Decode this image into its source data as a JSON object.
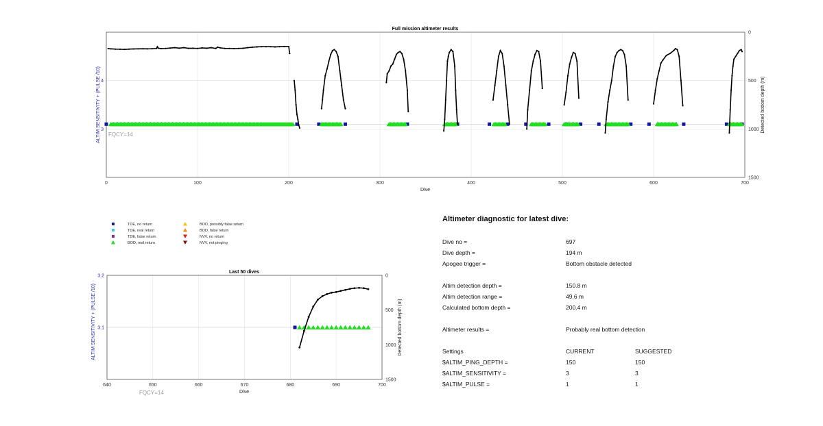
{
  "chart_data": [
    {
      "type": "line",
      "title": "Full mission altimeter results",
      "xlabel": "Dive",
      "ylabel_left": "ALTIM SENSITIVITY + (PULSE /10)",
      "ylabel_right": "Detected bottom depth (m)",
      "xlim": [
        0,
        700
      ],
      "ylim_left": [
        2,
        5
      ],
      "ylim_right": [
        1500,
        0
      ],
      "x_ticks": [
        "0",
        "100",
        "200",
        "300",
        "400",
        "500",
        "600",
        "700"
      ],
      "y_left_ticks": [
        "3",
        "4"
      ],
      "y_right_ticks": [
        "0",
        "500",
        "1000",
        "1500"
      ],
      "annotation": "FQCY=14",
      "settings_level": 3.1,
      "bottom_depth_segments": [
        {
          "x": [
            2,
            5,
            10,
            15,
            20,
            25,
            30,
            35,
            40,
            45,
            50,
            55,
            56,
            57,
            60,
            65,
            70,
            75,
            80,
            85,
            90,
            95,
            100,
            105,
            110,
            115,
            120,
            122,
            125,
            130,
            135,
            140,
            145,
            150,
            155,
            160,
            165,
            170,
            175,
            180,
            185,
            190,
            195,
            200,
            201
          ],
          "y": [
            170,
            172,
            175,
            176,
            178,
            175,
            173,
            172,
            171,
            172,
            171,
            168,
            150,
            165,
            170,
            168,
            164,
            160,
            165,
            160,
            167,
            166,
            168,
            162,
            166,
            160,
            168,
            155,
            162,
            168,
            168,
            170,
            168,
            166,
            160,
            155,
            152,
            150,
            150,
            150,
            152,
            150,
            148,
            148,
            220
          ]
        },
        {
          "x": [
            206,
            207,
            208,
            209,
            210,
            211,
            212
          ],
          "y": [
            500,
            600,
            750,
            850,
            900,
            960,
            990
          ]
        },
        {
          "x": [
            236,
            237,
            238,
            240,
            242,
            244,
            246,
            248,
            250,
            252,
            254,
            256,
            258,
            260,
            262
          ],
          "y": [
            790,
            700,
            600,
            450,
            380,
            300,
            230,
            190,
            180,
            200,
            250,
            400,
            550,
            700,
            790
          ]
        },
        {
          "x": [
            307,
            308,
            310,
            312,
            314,
            316,
            318,
            320,
            322,
            324,
            326,
            328,
            330,
            331
          ],
          "y": [
            520,
            430,
            400,
            350,
            330,
            280,
            230,
            210,
            200,
            220,
            280,
            400,
            600,
            820
          ]
        },
        {
          "x": [
            370,
            371,
            372,
            373,
            374,
            375,
            376,
            378,
            380,
            382,
            383,
            384,
            385
          ],
          "y": [
            1020,
            900,
            700,
            500,
            300,
            250,
            210,
            180,
            200,
            350,
            600,
            800,
            950
          ]
        },
        {
          "x": [
            424,
            426,
            428,
            430,
            432,
            434,
            436,
            438,
            440,
            442
          ],
          "y": [
            700,
            550,
            400,
            250,
            190,
            220,
            350,
            550,
            750,
            950
          ]
        },
        {
          "x": [
            461,
            462,
            464,
            466,
            468,
            470,
            472,
            474,
            476,
            478
          ],
          "y": [
            1000,
            800,
            600,
            400,
            300,
            230,
            190,
            200,
            300,
            580
          ]
        },
        {
          "x": [
            502,
            504,
            506,
            508,
            510,
            512,
            514,
            516,
            518
          ],
          "y": [
            750,
            620,
            450,
            330,
            260,
            210,
            220,
            300,
            680
          ]
        },
        {
          "x": [
            547,
            548,
            550,
            552,
            554,
            556,
            558,
            560,
            562,
            564,
            566,
            568,
            570,
            572
          ],
          "y": [
            1040,
            900,
            720,
            600,
            500,
            350,
            250,
            210,
            190,
            180,
            190,
            230,
            350,
            700
          ]
        },
        {
          "x": [
            600,
            602,
            604,
            606,
            608,
            610,
            614,
            618,
            622,
            624,
            626,
            628,
            630,
            632
          ],
          "y": [
            740,
            600,
            480,
            400,
            320,
            290,
            240,
            220,
            190,
            170,
            180,
            250,
            500,
            760
          ]
        },
        {
          "x": [
            683,
            684,
            685,
            686,
            687,
            688,
            690,
            692,
            694,
            696,
            697
          ],
          "y": [
            1040,
            800,
            600,
            450,
            350,
            280,
            250,
            220,
            190,
            180,
            200
          ]
        }
      ],
      "tde_no_return_dives": [
        0,
        209,
        233,
        262,
        330,
        385,
        420,
        440,
        460,
        485,
        505,
        520,
        540,
        575,
        595,
        633,
        680,
        697
      ],
      "bod_real_return_ranges": [
        [
          5,
          205
        ],
        [
          236,
          258
        ],
        [
          310,
          328
        ],
        [
          371,
          383
        ],
        [
          425,
          438
        ],
        [
          466,
          482
        ],
        [
          502,
          518
        ],
        [
          548,
          572
        ],
        [
          604,
          626
        ],
        [
          683,
          697
        ]
      ]
    },
    {
      "type": "line",
      "title": "Last 50 dives",
      "xlabel": "Dive",
      "ylabel_left": "ALTIM SENSITIVITY + (PULSE /10)",
      "ylabel_right": "Detected bottom depth (m)",
      "xlim": [
        640,
        700
      ],
      "ylim_left": [
        3.0,
        3.2
      ],
      "ylim_right": [
        1500,
        0
      ],
      "x_ticks": [
        "640",
        "650",
        "660",
        "670",
        "680",
        "690",
        "700"
      ],
      "y_left_ticks": [
        "3.1",
        "3.2"
      ],
      "y_right_ticks": [
        "0",
        "500",
        "1000",
        "1500"
      ],
      "annotation": "FQCY=14",
      "settings_level": 3.1,
      "bottom_depth": {
        "x": [
          682,
          683,
          684,
          685,
          686,
          687,
          688,
          689,
          690,
          691,
          692,
          693,
          694,
          695,
          696,
          697
        ],
        "y": [
          1040,
          800,
          600,
          450,
          350,
          300,
          270,
          250,
          240,
          225,
          210,
          195,
          185,
          180,
          185,
          200
        ]
      },
      "tde_no_return": [
        681
      ],
      "bod_real_return": [
        682,
        683,
        684,
        685,
        686,
        687,
        688,
        689,
        690,
        691,
        692,
        693,
        694,
        695,
        696,
        697
      ]
    }
  ],
  "legend": [
    {
      "label": "TDE, no return",
      "marker": "square",
      "color": "#1414a0"
    },
    {
      "label": "TDE, real return",
      "marker": "square",
      "color": "#3cc8e6"
    },
    {
      "label": "TDE, false return",
      "marker": "square",
      "color": "#7a2d96"
    },
    {
      "label": "BOD, real return",
      "marker": "triangle",
      "color": "#22dd22"
    },
    {
      "label": "BOD, possibly false return",
      "marker": "triangle",
      "color": "#f2c40f"
    },
    {
      "label": "BOD, false return",
      "marker": "triangle",
      "color": "#f08c18"
    },
    {
      "label": "NVV, no return",
      "marker": "triangle-down",
      "color": "#d81e1e"
    },
    {
      "label": "NVV, not pinging",
      "marker": "triangle-down",
      "color": "#7a1010"
    }
  ],
  "diagnostic": {
    "title": "Altimeter diagnostic for latest dive:",
    "dive_no_label": "Dive no =",
    "dive_no": "697",
    "dive_depth_label": "Dive depth =",
    "dive_depth": "194 m",
    "apogee_label": "Apogee trigger =",
    "apogee": "Bottom obstacle detected",
    "det_depth_label": "Altim detection depth =",
    "det_depth": "150.8 m",
    "det_range_label": "Altim detection range =",
    "det_range": "49.6 m",
    "calc_depth_label": "Calculated bottom depth =",
    "calc_depth": "200.4 m",
    "results_label": "Altimeter results =",
    "results": "Probably real bottom detection",
    "settings_label": "Settings",
    "current_label": "CURRENT",
    "suggested_label": "SUGGESTED",
    "ping_label": "$ALTIM_PING_DEPTH =",
    "ping_current": "150",
    "ping_suggested": "150",
    "sens_label": "$ALTIM_SENSITIVITY =",
    "sens_current": "3",
    "sens_suggested": "3",
    "pulse_label": "$ALTIM_PULSE =",
    "pulse_current": "1",
    "pulse_suggested": "1"
  },
  "colors": {
    "line": "#000000",
    "grid": "#e2e2e2",
    "axis_blue": "#2a2ab0",
    "tde_no_return": "#1414a0",
    "bod_real_return": "#22dd22"
  }
}
